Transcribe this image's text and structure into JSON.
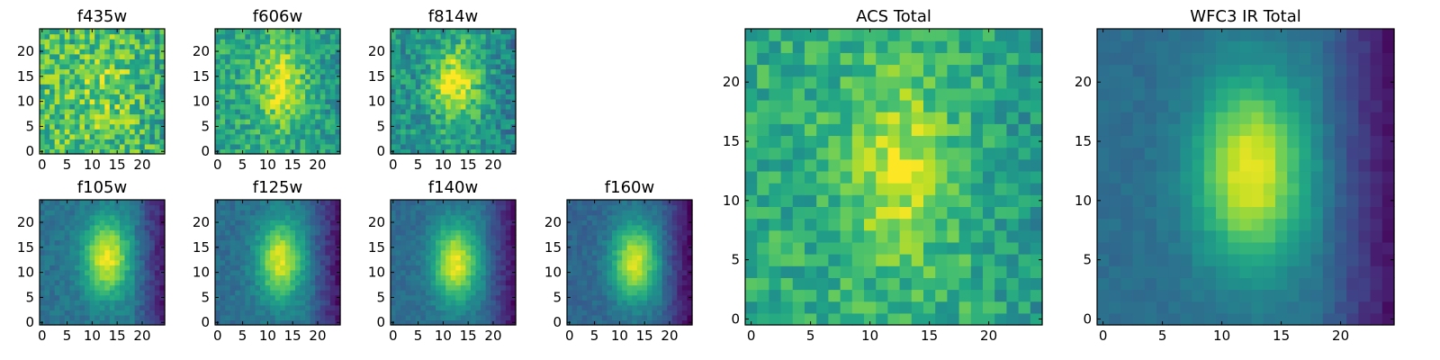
{
  "chart_data": [
    {
      "type": "heatmap",
      "title": "f435w",
      "colormap": "viridis",
      "grid_size": [
        25,
        25
      ],
      "xlim": [
        -0.5,
        24.5
      ],
      "ylim": [
        -0.5,
        24.5
      ],
      "xticks": [
        0,
        5,
        10,
        15,
        20
      ],
      "yticks": [
        0,
        5,
        10,
        15,
        20
      ],
      "structure": {
        "peak": 0.12,
        "background": 0.7,
        "noise": 0.22,
        "center": [
          12.5,
          12.5
        ]
      }
    },
    {
      "type": "heatmap",
      "title": "f606w",
      "colormap": "viridis",
      "grid_size": [
        25,
        25
      ],
      "xlim": [
        -0.5,
        24.5
      ],
      "ylim": [
        -0.5,
        24.5
      ],
      "xticks": [
        0,
        5,
        10,
        15,
        20
      ],
      "yticks": [
        0,
        5,
        10,
        15,
        20
      ],
      "structure": {
        "peak": 0.35,
        "background": 0.6,
        "noise": 0.16,
        "center": [
          12.5,
          13.5
        ]
      }
    },
    {
      "type": "heatmap",
      "title": "f814w",
      "colormap": "viridis",
      "grid_size": [
        25,
        25
      ],
      "xlim": [
        -0.5,
        24.5
      ],
      "ylim": [
        -0.5,
        24.5
      ],
      "xticks": [
        0,
        5,
        10,
        15,
        20
      ],
      "yticks": [
        0,
        5,
        10,
        15,
        20
      ],
      "structure": {
        "peak": 0.45,
        "background": 0.52,
        "noise": 0.16,
        "center": [
          12.5,
          13.5
        ]
      }
    },
    {
      "type": "heatmap",
      "title": "f105w",
      "colormap": "viridis",
      "grid_size": [
        25,
        25
      ],
      "xlim": [
        -0.5,
        24.5
      ],
      "ylim": [
        -0.5,
        24.5
      ],
      "xticks": [
        0,
        5,
        10,
        15,
        20
      ],
      "yticks": [
        0,
        5,
        10,
        15,
        20
      ],
      "structure": {
        "peak": 0.6,
        "background": 0.38,
        "noise": 0.06,
        "center": [
          13,
          13
        ]
      }
    },
    {
      "type": "heatmap",
      "title": "f125w",
      "colormap": "viridis",
      "grid_size": [
        25,
        25
      ],
      "xlim": [
        -0.5,
        24.5
      ],
      "ylim": [
        -0.5,
        24.5
      ],
      "xticks": [
        0,
        5,
        10,
        15,
        20
      ],
      "yticks": [
        0,
        5,
        10,
        15,
        20
      ],
      "structure": {
        "peak": 0.6,
        "background": 0.36,
        "noise": 0.06,
        "center": [
          12.5,
          12.5
        ]
      }
    },
    {
      "type": "heatmap",
      "title": "f140w",
      "colormap": "viridis",
      "grid_size": [
        25,
        25
      ],
      "xlim": [
        -0.5,
        24.5
      ],
      "ylim": [
        -0.5,
        24.5
      ],
      "xticks": [
        0,
        5,
        10,
        15,
        20
      ],
      "yticks": [
        0,
        5,
        10,
        15,
        20
      ],
      "structure": {
        "peak": 0.62,
        "background": 0.35,
        "noise": 0.05,
        "center": [
          12.5,
          12
        ]
      }
    },
    {
      "type": "heatmap",
      "title": "f160w",
      "colormap": "viridis",
      "grid_size": [
        25,
        25
      ],
      "xlim": [
        -0.5,
        24.5
      ],
      "ylim": [
        -0.5,
        24.5
      ],
      "xticks": [
        0,
        5,
        10,
        15,
        20
      ],
      "yticks": [
        0,
        5,
        10,
        15,
        20
      ],
      "structure": {
        "peak": 0.62,
        "background": 0.33,
        "noise": 0.05,
        "center": [
          13,
          12
        ]
      }
    },
    {
      "type": "heatmap",
      "title": "ACS Total",
      "colormap": "viridis",
      "grid_size": [
        25,
        25
      ],
      "xlim": [
        -0.5,
        24.5
      ],
      "ylim": [
        -0.5,
        24.5
      ],
      "xticks": [
        0,
        5,
        10,
        15,
        20
      ],
      "yticks": [
        0,
        5,
        10,
        15,
        20
      ],
      "structure": {
        "peak": 0.3,
        "background": 0.62,
        "noise": 0.14,
        "center": [
          12.5,
          13
        ]
      }
    },
    {
      "type": "heatmap",
      "title": "WFC3 IR Total",
      "colormap": "viridis",
      "grid_size": [
        25,
        25
      ],
      "xlim": [
        -0.5,
        24.5
      ],
      "ylim": [
        -0.5,
        24.5
      ],
      "xticks": [
        0,
        5,
        10,
        15,
        20
      ],
      "yticks": [
        0,
        5,
        10,
        15,
        20
      ],
      "structure": {
        "peak": 0.62,
        "background": 0.36,
        "noise": 0.03,
        "center": [
          12.5,
          12.5
        ]
      }
    }
  ]
}
